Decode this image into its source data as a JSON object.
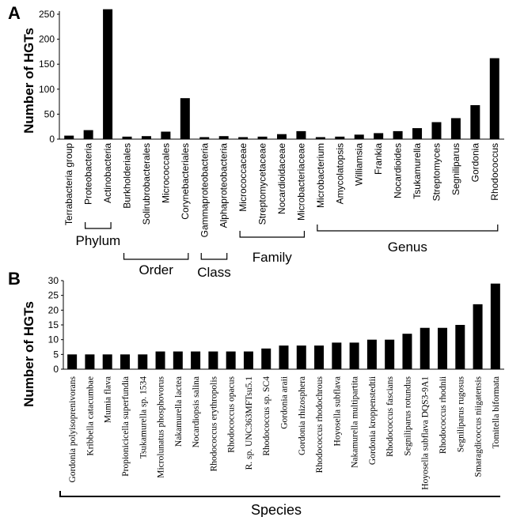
{
  "chart_data": [
    {
      "panel": "A",
      "type": "bar",
      "ylabel": "Number of HGTs",
      "ylim": [
        0,
        250
      ],
      "yticks": [
        0,
        50,
        100,
        150,
        200,
        250
      ],
      "categories": [
        "Terrabacteria group",
        "Proteobacteria",
        "Actinobacteria",
        "Burkholderiales",
        "Solirubrobacterales",
        "Micrococcales",
        "Corynebacteriales",
        "Gammaproteobacteria",
        "Alphaproteobacteria",
        "Micrococcaceae",
        "Streptomycetaceae",
        "Nocardioidaceae",
        "Microbacteriaceae",
        "Microbacterium",
        "Amycolatopsis",
        "Williamsia",
        "Frankia",
        "Nocardioides",
        "Tsukamurella",
        "Streptomyces",
        "Segniliparus",
        "Gordonia",
        "Rhodococcus"
      ],
      "values": [
        7,
        18,
        260,
        5,
        6,
        15,
        82,
        4,
        6,
        4,
        5,
        10,
        16,
        4,
        5,
        9,
        12,
        16,
        22,
        34,
        42,
        68,
        162
      ],
      "groups": [
        {
          "label": "Phylum",
          "from": 1,
          "to": 2
        },
        {
          "label": "Order",
          "from": 3,
          "to": 6
        },
        {
          "label": "Class",
          "from": 7,
          "to": 8
        },
        {
          "label": "Family",
          "from": 9,
          "to": 12
        },
        {
          "label": "Genus",
          "from": 13,
          "to": 22
        }
      ]
    },
    {
      "panel": "B",
      "type": "bar",
      "ylabel": "Number of HGTs",
      "xlabel": "Species",
      "ylim": [
        0,
        30
      ],
      "yticks": [
        0,
        5,
        10,
        15,
        20,
        25,
        30
      ],
      "categories": [
        "Gordonia polyisoprenivorans",
        "Kribbella catacumbae",
        "Mumia flava",
        "Propionicicella superfundia",
        "Tsukamurella sp. 1534",
        "Microlunatus phosphovorus",
        "Nakamurella lactea",
        "Nocardiopsis salina",
        "Rhodococcus erythropolis",
        "Rhodococcus opacus",
        "R. sp. UNC363MFTsu5.1",
        "Rhodococcus sp. SC4",
        "Gordonia araii",
        "Gordonia rhizosphera",
        "Rhodococcus rhodochrous",
        "Hoyosella subflava",
        "Nakamurella multipartita",
        "Gordonia kroppenstedtii",
        "Rhodococcus fascians",
        "Segniliparus rotundus",
        "Hoyosella subflava DQS3-9A1",
        "Rhodococcus rhodnii",
        "Segniliparus rugosus",
        "Smaragdicoccus niigatensis",
        "Tomitella biformata"
      ],
      "values": [
        5,
        5,
        5,
        5,
        5,
        6,
        6,
        6,
        6,
        6,
        6,
        7,
        8,
        8,
        8,
        9,
        9,
        10,
        10,
        12,
        14,
        14,
        15,
        22,
        29
      ]
    }
  ]
}
